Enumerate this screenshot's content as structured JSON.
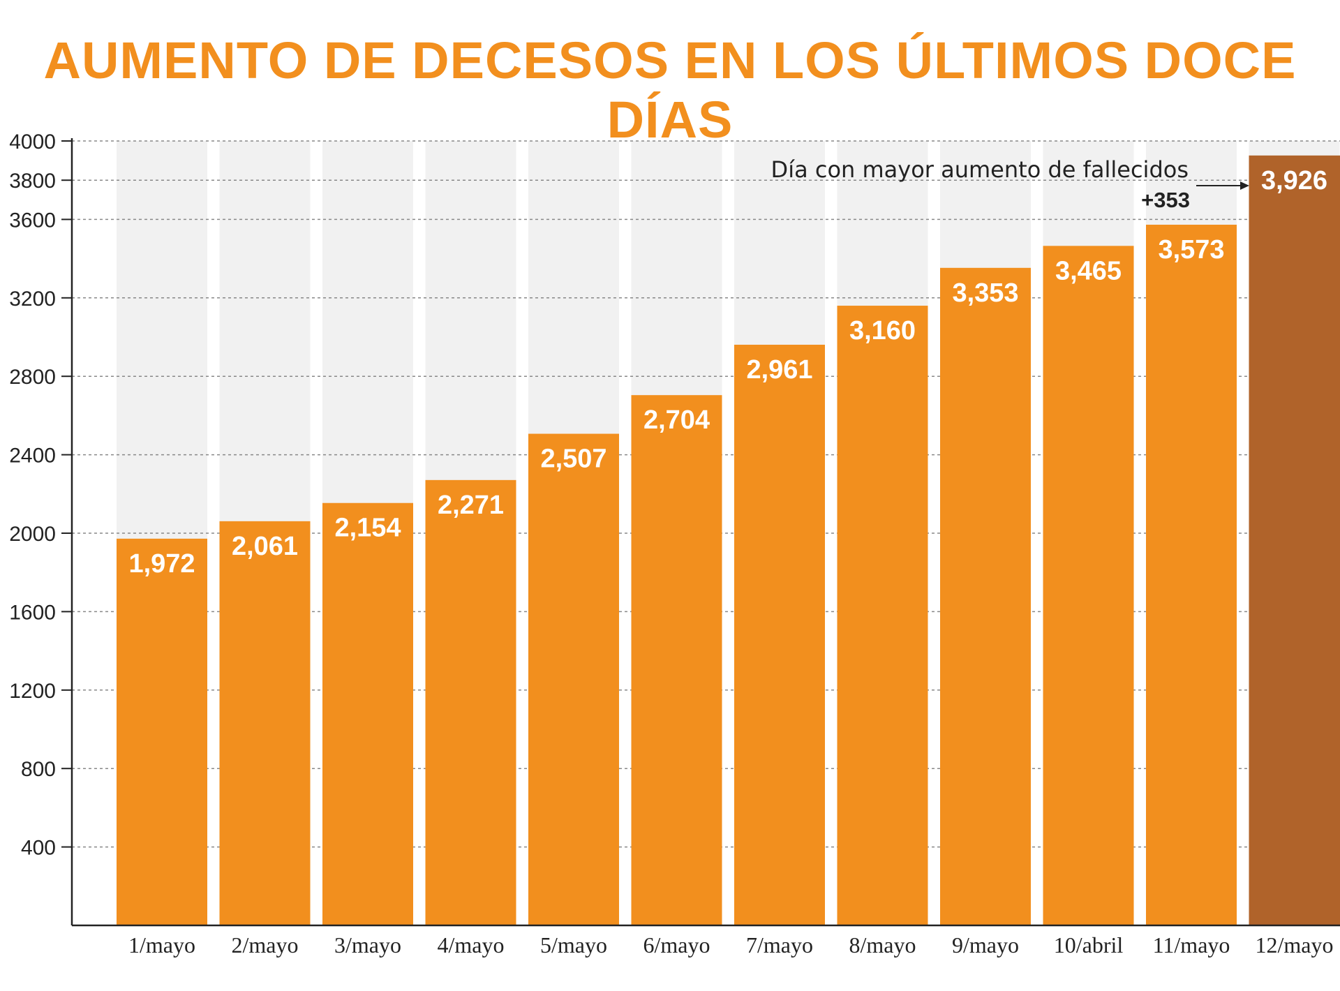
{
  "chart_data": {
    "type": "bar",
    "title": "AUMENTO DE DECESOS EN LOS ÚLTIMOS DOCE DÍAS",
    "xlabel": "",
    "ylabel": "",
    "ylim": [
      0,
      4000
    ],
    "yticks": [
      400,
      800,
      1200,
      1600,
      2000,
      2400,
      2800,
      3200,
      3600,
      3800,
      4000
    ],
    "grid": true,
    "categories": [
      "1/mayo",
      "2/mayo",
      "3/mayo",
      "4/mayo",
      "5/mayo",
      "6/mayo",
      "7/mayo",
      "8/mayo",
      "9/mayo",
      "10/abril",
      "11/mayo",
      "12/mayo"
    ],
    "values": [
      1972,
      2061,
      2154,
      2271,
      2507,
      2704,
      2961,
      3160,
      3353,
      3465,
      3573,
      3926
    ],
    "value_labels": [
      "1,972",
      "2,061",
      "2,154",
      "2,271",
      "2,507",
      "2,704",
      "2,961",
      "3,160",
      "3,353",
      "3,465",
      "3,573",
      "3,926"
    ],
    "highlight_index": 11,
    "annotation": {
      "text": "Día con mayor aumento de fallecidos",
      "delta": "+353"
    },
    "colors": {
      "bar": "#f28f1e",
      "highlight": "#b0632a",
      "column_bg": "#f1f1f1",
      "title": "#f28f1e",
      "grid": "#888888"
    }
  }
}
